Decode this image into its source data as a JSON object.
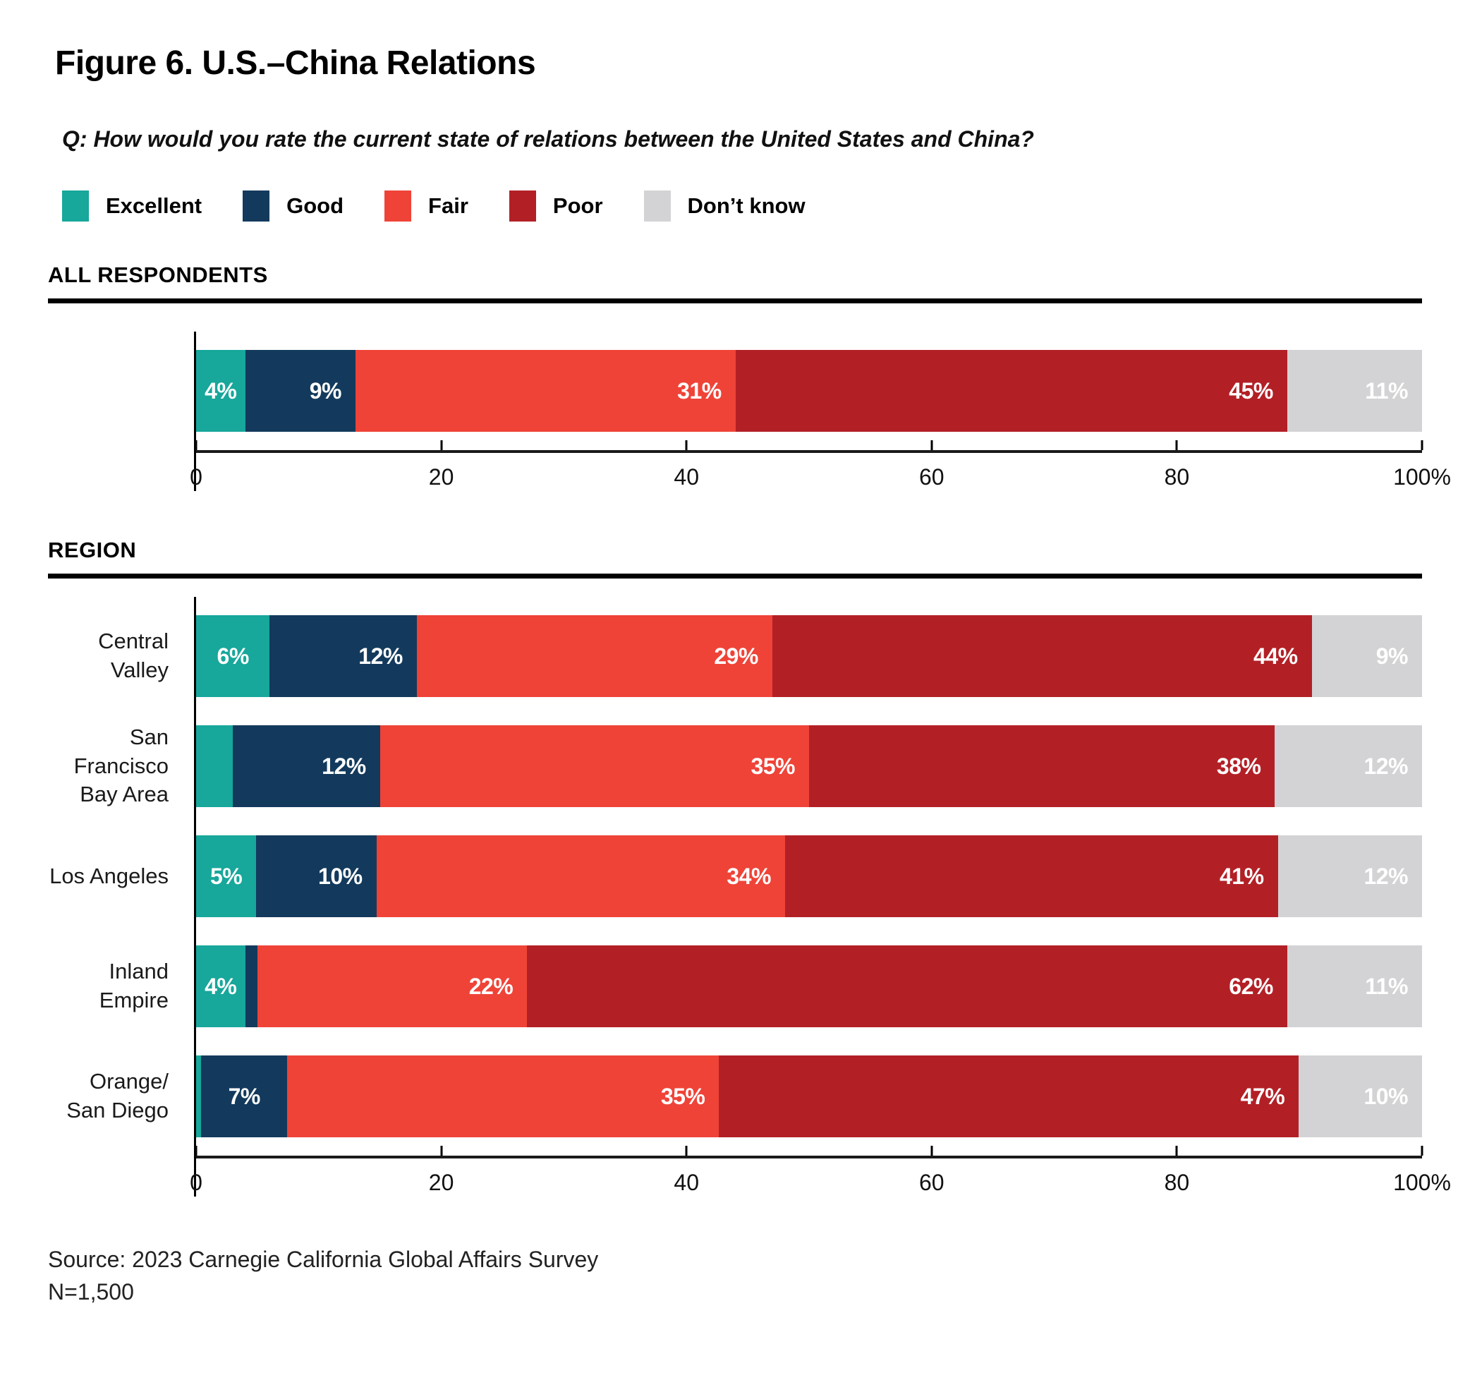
{
  "figure": {
    "title": "Figure 6. U.S.–China Relations",
    "question": "Q: How would you rate the current state of relations between the United States and China?",
    "source_line1": "Source: 2023 Carnegie California Global Affairs Survey",
    "source_line2": "N=1,500"
  },
  "legend": [
    {
      "label": "Excellent",
      "color": "#17A79B"
    },
    {
      "label": "Good",
      "color": "#133A5C"
    },
    {
      "label": "Fair",
      "color": "#EF4338"
    },
    {
      "label": "Poor",
      "color": "#B22026"
    },
    {
      "label": "Don’t know",
      "color": "#D3D3D5"
    }
  ],
  "chart_data": [
    {
      "type": "bar",
      "orientation": "horizontal-stacked",
      "section": "ALL RESPONDENTS",
      "series_names": [
        "Excellent",
        "Good",
        "Fair",
        "Poor",
        "Don’t know"
      ],
      "rows": [
        {
          "category": "",
          "values": [
            4,
            9,
            31,
            45,
            11
          ],
          "labels": [
            "4%",
            "9%",
            "31%",
            "45%",
            "11%"
          ]
        }
      ],
      "x_ticks": [
        "0",
        "20",
        "40",
        "60",
        "80",
        "100%"
      ],
      "xlim": [
        0,
        100
      ],
      "grid": false
    },
    {
      "type": "bar",
      "orientation": "horizontal-stacked",
      "section": "REGION",
      "series_names": [
        "Excellent",
        "Good",
        "Fair",
        "Poor",
        "Don’t know"
      ],
      "rows": [
        {
          "category": "Central Valley",
          "values": [
            6,
            12,
            29,
            44,
            9
          ],
          "labels": [
            "6%",
            "12%",
            "29%",
            "44%",
            "9%"
          ]
        },
        {
          "category": "San Francisco\nBay Area",
          "values": [
            3,
            12,
            35,
            38,
            12
          ],
          "labels": [
            "",
            "12%",
            "35%",
            "38%",
            "12%"
          ]
        },
        {
          "category": "Los Angeles",
          "values": [
            5,
            10,
            34,
            41,
            12
          ],
          "labels": [
            "5%",
            "10%",
            "34%",
            "41%",
            "12%"
          ]
        },
        {
          "category": "Inland Empire",
          "values": [
            4,
            1,
            22,
            62,
            11
          ],
          "labels": [
            "4%",
            "",
            "22%",
            "62%",
            "11%"
          ]
        },
        {
          "category": "Orange/\nSan Diego",
          "values": [
            0.4,
            7,
            35,
            47,
            10
          ],
          "labels": [
            "",
            "7%",
            "35%",
            "47%",
            "10%"
          ]
        }
      ],
      "x_ticks": [
        "0",
        "20",
        "40",
        "60",
        "80",
        "100%"
      ],
      "xlim": [
        0,
        100
      ],
      "grid": false
    }
  ]
}
